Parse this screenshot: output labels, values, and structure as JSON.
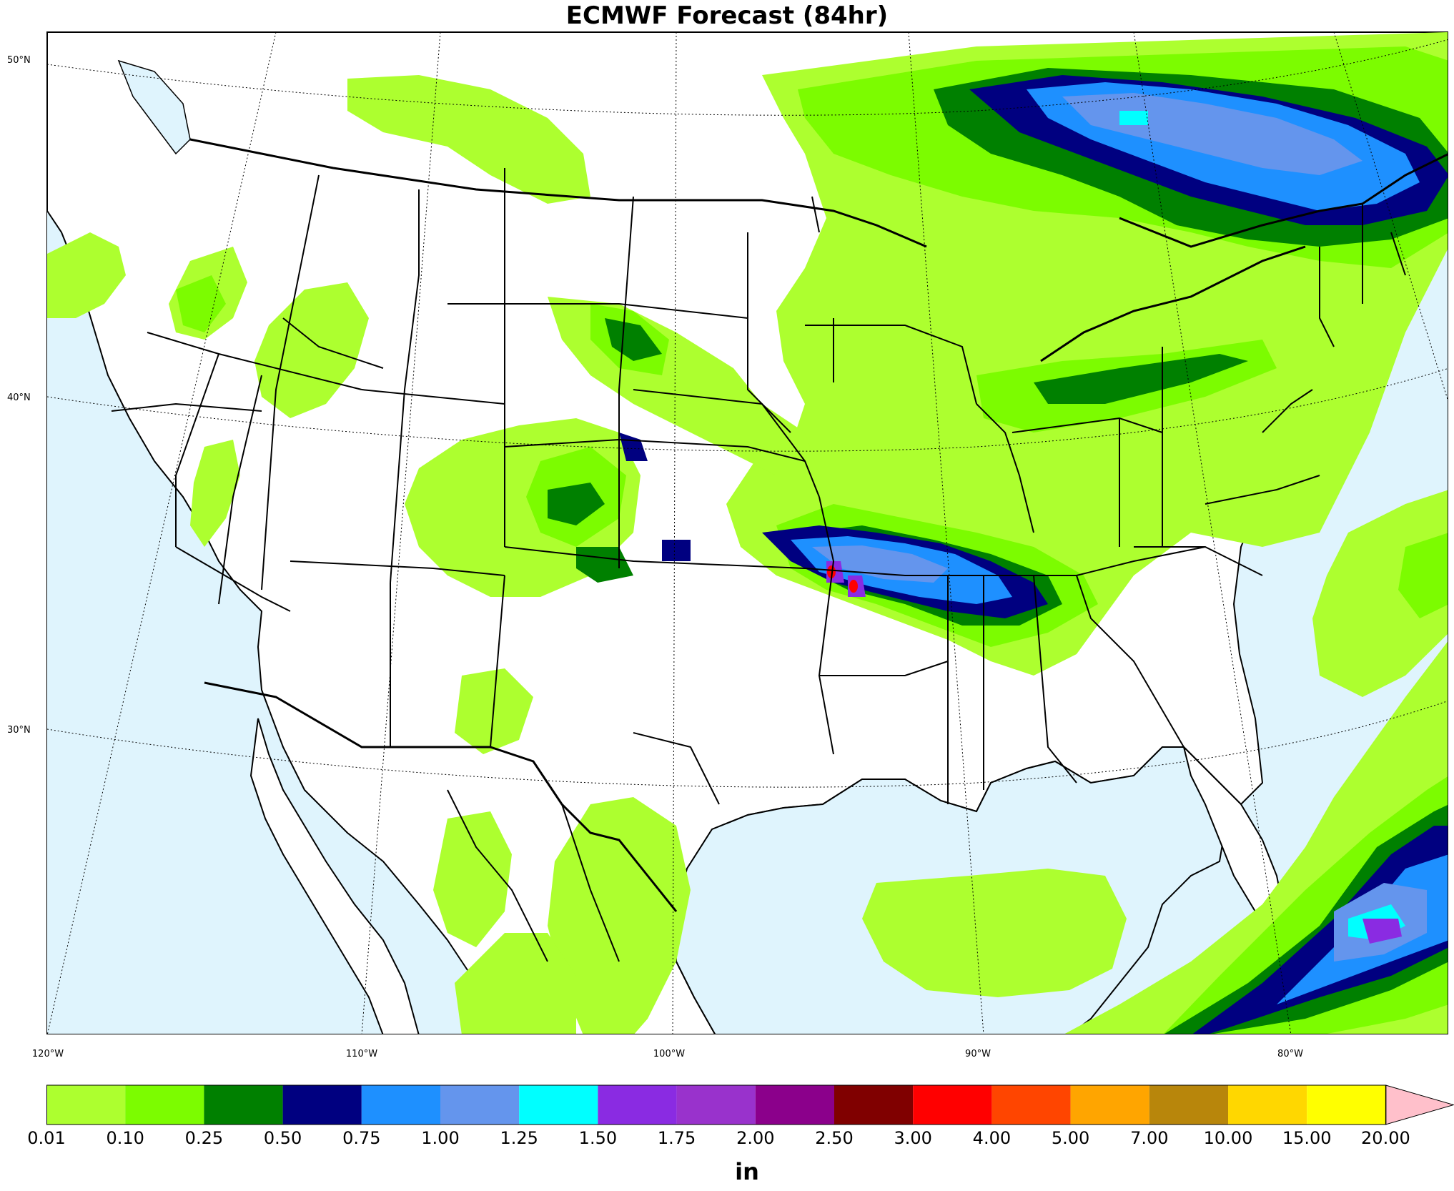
{
  "title": "ECMWF Forecast (84hr)",
  "lat_labels": [
    {
      "text": "50°N"
    },
    {
      "text": "40°N"
    },
    {
      "text": "30°N"
    }
  ],
  "lon_labels": [
    {
      "text": "120°W"
    },
    {
      "text": "110°W"
    },
    {
      "text": "100°W"
    },
    {
      "text": "90°W"
    },
    {
      "text": "80°W"
    }
  ],
  "colorbar": {
    "units": "in",
    "ticks": [
      "0.01",
      "0.10",
      "0.25",
      "0.50",
      "0.75",
      "1.00",
      "1.25",
      "1.50",
      "1.75",
      "2.00",
      "2.50",
      "3.00",
      "4.00",
      "5.00",
      "7.00",
      "10.00",
      "15.00",
      "20.00"
    ],
    "colors": [
      "#adff2f",
      "#7cfc00",
      "#008000",
      "#000080",
      "#1e90ff",
      "#6495ed",
      "#00ffff",
      "#8a2be2",
      "#9932cc",
      "#8b008b",
      "#800000",
      "#ff0000",
      "#ff4500",
      "#ffa500",
      "#b8860b",
      "#ffd700",
      "#ffff00"
    ],
    "extend_color": "#ffc0cb"
  },
  "colors": {
    "ocean": "#dff4fd",
    "land": "#ffffff",
    "light_green": "#adff2f",
    "green": "#7cfc00",
    "dark_green": "#008000",
    "navy": "#000080",
    "blue": "#1e90ff",
    "cornflower": "#6495ed",
    "cyan": "#00ffff",
    "purple": "#8a2be2",
    "dark_magenta": "#8b008b",
    "red": "#ff0000"
  }
}
